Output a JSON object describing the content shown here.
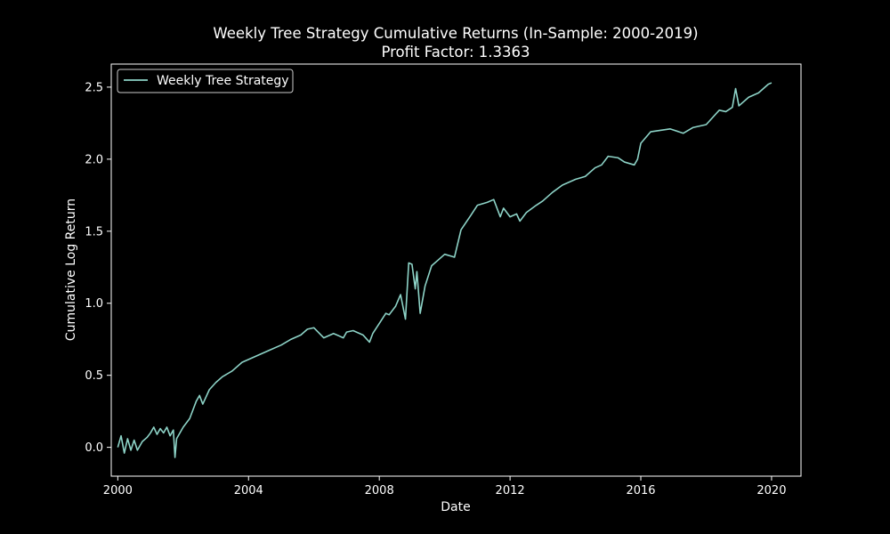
{
  "chart_data": {
    "type": "line",
    "title": "Weekly Tree Strategy Cumulative Returns (In-Sample: 2000-2019)",
    "subtitle": "Profit Factor: 1.3363",
    "xlabel": "Date",
    "ylabel": "Cumulative Log Return",
    "xlim": [
      1999.8,
      2020.9
    ],
    "ylim": [
      -0.2,
      2.66
    ],
    "xticks": [
      2000,
      2004,
      2008,
      2012,
      2016,
      2020
    ],
    "xtick_labels": [
      "2000",
      "2004",
      "2008",
      "2012",
      "2016",
      "2020"
    ],
    "yticks": [
      0.0,
      0.5,
      1.0,
      1.5,
      2.0,
      2.5
    ],
    "ytick_labels": [
      "0.0",
      "0.5",
      "1.0",
      "1.5",
      "2.0",
      "2.5"
    ],
    "grid": false,
    "legend_position": "top-left",
    "colors": {
      "background": "#000000",
      "axes": "#ffffff",
      "line": "#8dd3c7"
    },
    "series": [
      {
        "name": "Weekly Tree Strategy",
        "x": [
          2000.0,
          2000.1,
          2000.2,
          2000.3,
          2000.4,
          2000.5,
          2000.6,
          2000.75,
          2000.9,
          2001.0,
          2001.1,
          2001.2,
          2001.3,
          2001.4,
          2001.5,
          2001.6,
          2001.7,
          2001.75,
          2001.8,
          2002.0,
          2002.2,
          2002.4,
          2002.5,
          2002.6,
          2002.8,
          2003.0,
          2003.2,
          2003.5,
          2003.8,
          2004.0,
          2004.3,
          2004.6,
          2005.0,
          2005.3,
          2005.6,
          2005.8,
          2006.0,
          2006.3,
          2006.6,
          2006.9,
          2007.0,
          2007.2,
          2007.5,
          2007.7,
          2007.8,
          2008.0,
          2008.2,
          2008.3,
          2008.5,
          2008.65,
          2008.8,
          2008.9,
          2009.0,
          2009.1,
          2009.15,
          2009.25,
          2009.4,
          2009.6,
          2009.8,
          2010.0,
          2010.3,
          2010.5,
          2010.8,
          2011.0,
          2011.3,
          2011.5,
          2011.7,
          2011.8,
          2011.9,
          2012.0,
          2012.2,
          2012.3,
          2012.5,
          2012.8,
          2013.0,
          2013.3,
          2013.6,
          2014.0,
          2014.3,
          2014.6,
          2014.8,
          2015.0,
          2015.3,
          2015.5,
          2015.8,
          2015.9,
          2016.0,
          2016.3,
          2016.6,
          2016.9,
          2017.3,
          2017.6,
          2018.0,
          2018.4,
          2018.6,
          2018.8,
          2018.9,
          2019.0,
          2019.3,
          2019.6,
          2019.9,
          2020.0
        ],
        "values": [
          0.0,
          0.08,
          -0.04,
          0.06,
          -0.02,
          0.05,
          -0.02,
          0.04,
          0.07,
          0.1,
          0.14,
          0.09,
          0.13,
          0.1,
          0.14,
          0.08,
          0.12,
          -0.07,
          0.06,
          0.14,
          0.2,
          0.32,
          0.36,
          0.3,
          0.4,
          0.45,
          0.49,
          0.53,
          0.59,
          0.61,
          0.64,
          0.67,
          0.71,
          0.75,
          0.78,
          0.82,
          0.83,
          0.76,
          0.79,
          0.76,
          0.8,
          0.81,
          0.78,
          0.73,
          0.79,
          0.86,
          0.93,
          0.92,
          0.98,
          1.06,
          0.89,
          1.28,
          1.27,
          1.1,
          1.22,
          0.93,
          1.12,
          1.26,
          1.3,
          1.34,
          1.32,
          1.51,
          1.61,
          1.68,
          1.7,
          1.72,
          1.6,
          1.66,
          1.63,
          1.6,
          1.62,
          1.57,
          1.63,
          1.68,
          1.71,
          1.77,
          1.82,
          1.86,
          1.88,
          1.94,
          1.96,
          2.02,
          2.01,
          1.98,
          1.96,
          2.0,
          2.11,
          2.19,
          2.2,
          2.21,
          2.18,
          2.22,
          2.24,
          2.34,
          2.33,
          2.36,
          2.49,
          2.37,
          2.43,
          2.46,
          2.52,
          2.53
        ]
      }
    ]
  }
}
